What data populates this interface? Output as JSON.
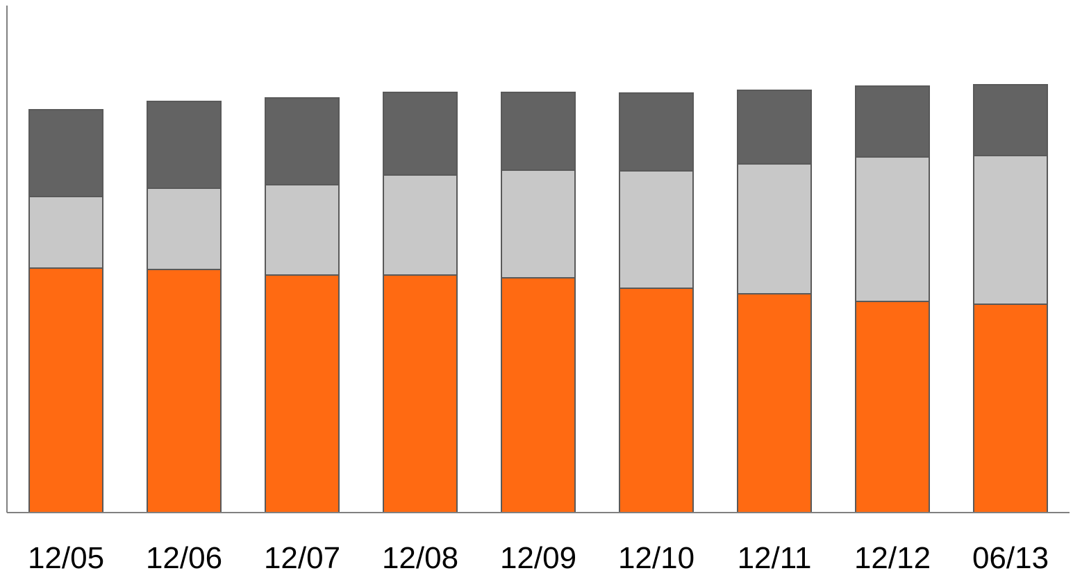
{
  "chart_data": {
    "type": "bar",
    "stacked": true,
    "categories": [
      "12/05",
      "12/06",
      "12/07",
      "12/08",
      "12/09",
      "12/10",
      "12/11",
      "12/12",
      "06/13"
    ],
    "series": [
      {
        "values": [
          352,
          350,
          342,
          342,
          338,
          323,
          315,
          304,
          300
        ]
      },
      {
        "values": [
          103,
          117,
          130,
          144,
          155,
          169,
          187,
          208,
          214
        ]
      },
      {
        "values": [
          125,
          125,
          125,
          119,
          112,
          112,
          106,
          102,
          102
        ]
      }
    ],
    "colors": [
      "#ff6a12",
      "#c8c8c8",
      "#636363"
    ],
    "ylim": [
      0,
      730
    ],
    "y_axis_ticks": false,
    "grid": false,
    "legend": "none",
    "xlabel": "",
    "ylabel": ""
  }
}
